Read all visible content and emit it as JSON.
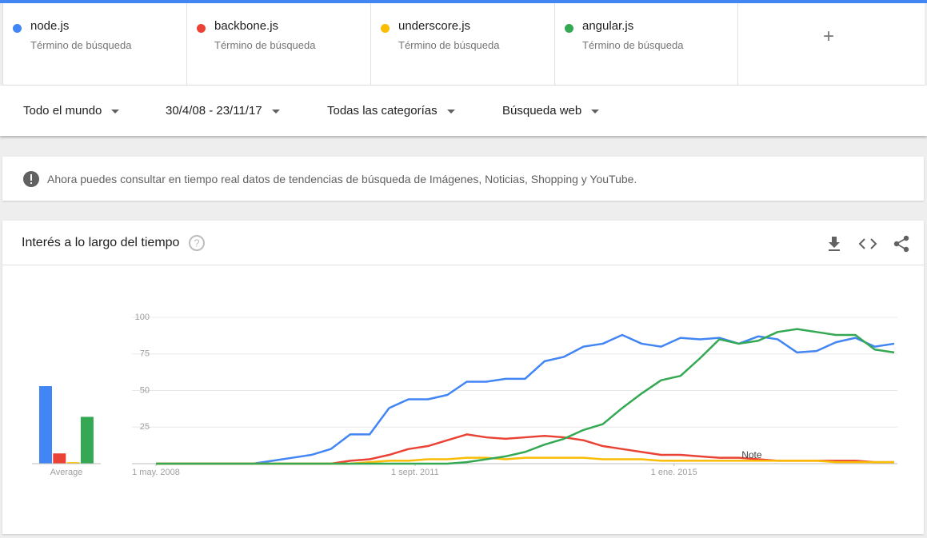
{
  "filters": [
    "Todo el mundo",
    "30/4/08 - 23/11/17",
    "Todas las categorías",
    "Búsqueda web"
  ],
  "term_subtitle": "Término de búsqueda",
  "notice": "Ahora puedes consultar en tiempo real datos de tendencias de búsqueda de Imágenes, Noticias, Shopping y YouTube.",
  "card_title": "Interés a lo largo del tiempo",
  "chart_data": {
    "type": "line",
    "x": [
      "2008-05",
      "2008-08",
      "2008-11",
      "2009-02",
      "2009-05",
      "2009-08",
      "2009-11",
      "2010-02",
      "2010-05",
      "2010-08",
      "2010-11",
      "2011-02",
      "2011-05",
      "2011-08",
      "2011-11",
      "2012-02",
      "2012-05",
      "2012-08",
      "2012-11",
      "2013-02",
      "2013-05",
      "2013-08",
      "2013-11",
      "2014-02",
      "2014-05",
      "2014-08",
      "2014-11",
      "2015-02",
      "2015-05",
      "2015-08",
      "2015-11",
      "2016-02",
      "2016-05",
      "2016-08",
      "2016-11",
      "2017-02",
      "2017-05",
      "2017-08",
      "2017-11"
    ],
    "xlim": [
      "2008-05",
      "2017-11"
    ],
    "xticks": [
      {
        "value": "2008-05",
        "label": "1 may. 2008"
      },
      {
        "value": "2011-09",
        "label": "1 sept. 2011"
      },
      {
        "value": "2015-01",
        "label": "1 ene. 2015"
      }
    ],
    "ylim": [
      0,
      100
    ],
    "yticks": [
      25,
      50,
      75,
      100
    ],
    "grid": true,
    "average_label": "Average",
    "annotation": {
      "label": "Note",
      "x": "2016-01"
    },
    "series": [
      {
        "name": "node.js",
        "color": "#4285f4",
        "average": 53,
        "values": [
          0,
          0,
          0,
          0,
          0,
          0,
          2,
          4,
          6,
          10,
          20,
          20,
          38,
          44,
          44,
          47,
          56,
          56,
          58,
          58,
          70,
          73,
          80,
          82,
          88,
          82,
          80,
          86,
          85,
          86,
          82,
          87,
          85,
          76,
          77,
          83,
          86,
          80,
          82
        ]
      },
      {
        "name": "backbone.js",
        "color": "#ea4335",
        "average": 7,
        "values": [
          0,
          0,
          0,
          0,
          0,
          0,
          0,
          0,
          0,
          0,
          2,
          3,
          6,
          10,
          12,
          16,
          20,
          18,
          17,
          18,
          19,
          18,
          16,
          12,
          10,
          8,
          6,
          6,
          5,
          4,
          4,
          3,
          2,
          2,
          2,
          2,
          2,
          1,
          1
        ]
      },
      {
        "name": "underscore.js",
        "color": "#fbbc04",
        "average": 1,
        "values": [
          0,
          0,
          0,
          0,
          0,
          0,
          0,
          0,
          0,
          0,
          0,
          1,
          2,
          2,
          3,
          3,
          4,
          4,
          3,
          4,
          4,
          4,
          4,
          3,
          3,
          3,
          2,
          2,
          2,
          2,
          2,
          2,
          2,
          2,
          2,
          1,
          1,
          1,
          1
        ]
      },
      {
        "name": "angular.js",
        "color": "#34a853",
        "average": 32,
        "values": [
          0,
          0,
          0,
          0,
          0,
          0,
          0,
          0,
          0,
          0,
          0,
          0,
          0,
          0,
          0,
          0,
          1,
          3,
          5,
          8,
          13,
          17,
          23,
          27,
          38,
          48,
          57,
          60,
          72,
          85,
          82,
          84,
          90,
          92,
          90,
          88,
          88,
          78,
          76
        ]
      }
    ]
  }
}
